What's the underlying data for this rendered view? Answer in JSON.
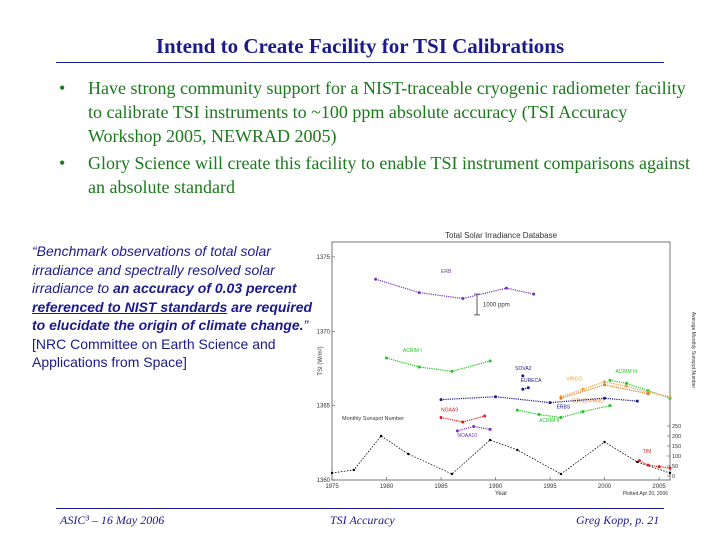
{
  "slide": {
    "title": "Intend to Create Facility for TSI Calibrations",
    "bullets": [
      "Have strong community support for a NIST-traceable cryogenic radiometer facility to calibrate TSI instruments to ~100 ppm absolute accuracy (TSI Accuracy Workshop 2005, NEWRAD 2005)",
      "Glory Science will create this facility to enable TSI instrument comparisons against an absolute standard"
    ],
    "quote": {
      "p1": "“Benchmark observations of total solar irradiance and spectrally resolved solar irradiance to ",
      "p2": "an accuracy of 0.03 percent ",
      "p3": "referenced to NIST standards",
      "p4": " are required to elucidate the origin of climate change.",
      "p5": "”",
      "source": "[NRC Committee on Earth Science and Applications from Space]"
    },
    "footer": {
      "left": "ASIC³ – 16 May 2006",
      "center": "TSI Accuracy",
      "right": "Greg Kopp, p. 21"
    }
  },
  "chart_data": {
    "type": "scatter",
    "title": "Total Solar Irradiance Database",
    "xlabel": "Year",
    "ylabel": "TSI (W/m²)",
    "y2label": "Average Monthly Sunspot Number",
    "xlim": [
      1975,
      2006
    ],
    "ylim": [
      1360,
      1376
    ],
    "x_ticks": [
      "1975",
      "1980",
      "1985",
      "1990",
      "1995",
      "2000",
      "2005"
    ],
    "y_ticks": [
      "1360",
      "1365",
      "1370",
      "1375"
    ],
    "y2_ticks": [
      "250",
      "200",
      "150",
      "100",
      "50",
      "0"
    ],
    "scale_bar_label": "1000 ppm",
    "sunspot_label": "Monthly Sunspot Number",
    "plotted_note": "Plotted Apr 20, 2006",
    "series": [
      {
        "name": "ERB",
        "color": "#7a2fb8",
        "x": [
          1979,
          1983,
          1987,
          1991,
          1993.5
        ],
        "y": [
          1373.5,
          1372.6,
          1372.2,
          1372.9,
          1372.5
        ]
      },
      {
        "name": "ACRIM I",
        "color": "#22c322",
        "x": [
          1980,
          1983,
          1986,
          1989.5
        ],
        "y": [
          1368.2,
          1367.6,
          1367.3,
          1368.0
        ]
      },
      {
        "name": "ACRIM II",
        "color": "#22c322",
        "x": [
          1992,
          1994,
          1996,
          1998,
          2000.5
        ],
        "y": [
          1364.7,
          1364.4,
          1364.2,
          1364.6,
          1365.0
        ]
      },
      {
        "name": "ACRIM III",
        "color": "#22c322",
        "x": [
          2000.5,
          2002,
          2004,
          2006
        ],
        "y": [
          1366.7,
          1366.5,
          1366.0,
          1365.5
        ]
      },
      {
        "name": "VIRGO",
        "color": "#f0a040",
        "x": [
          1996,
          1998,
          2000,
          2002,
          2004,
          2006
        ],
        "y": [
          1365.6,
          1366.1,
          1366.6,
          1366.3,
          1365.9,
          1365.6
        ]
      },
      {
        "name": "SOHO/VIRGO",
        "color": "#e07a1a",
        "x": [
          1996,
          2000,
          2004
        ],
        "y": [
          1365.5,
          1366.4,
          1365.8
        ]
      },
      {
        "name": "NOAA9",
        "color": "#e01a1a",
        "x": [
          1985,
          1987,
          1989
        ],
        "y": [
          1364.2,
          1363.9,
          1364.3
        ]
      },
      {
        "name": "NOAA10",
        "color": "#7a2fb8",
        "x": [
          1986.5,
          1988,
          1989.5
        ],
        "y": [
          1363.3,
          1363.6,
          1363.4
        ]
      },
      {
        "name": "EURECA",
        "color": "#1a1a8c",
        "x": [
          1992.5,
          1993
        ],
        "y": [
          1366.1,
          1366.2
        ]
      },
      {
        "name": "ERBS",
        "color": "#1a1a8c",
        "x": [
          1985,
          1990,
          1995,
          2000,
          2003
        ],
        "y": [
          1365.4,
          1365.6,
          1365.2,
          1365.5,
          1365.3
        ]
      },
      {
        "name": "SOVA2",
        "color": "#1a1a8c",
        "x": [
          1992.5
        ],
        "y": [
          1367.0
        ]
      },
      {
        "name": "TIM",
        "color": "#e01a1a",
        "x": [
          2003.2,
          2004,
          2005,
          2006
        ],
        "y": [
          1361.3,
          1361.0,
          1360.9,
          1360.8
        ]
      }
    ],
    "sunspot": {
      "color": "#000000",
      "x": [
        1975,
        1977,
        1979.5,
        1982,
        1986,
        1989.5,
        1992,
        1996,
        2000,
        2003,
        2006
      ],
      "y": [
        15,
        30,
        200,
        110,
        10,
        180,
        130,
        10,
        170,
        70,
        15
      ]
    }
  }
}
